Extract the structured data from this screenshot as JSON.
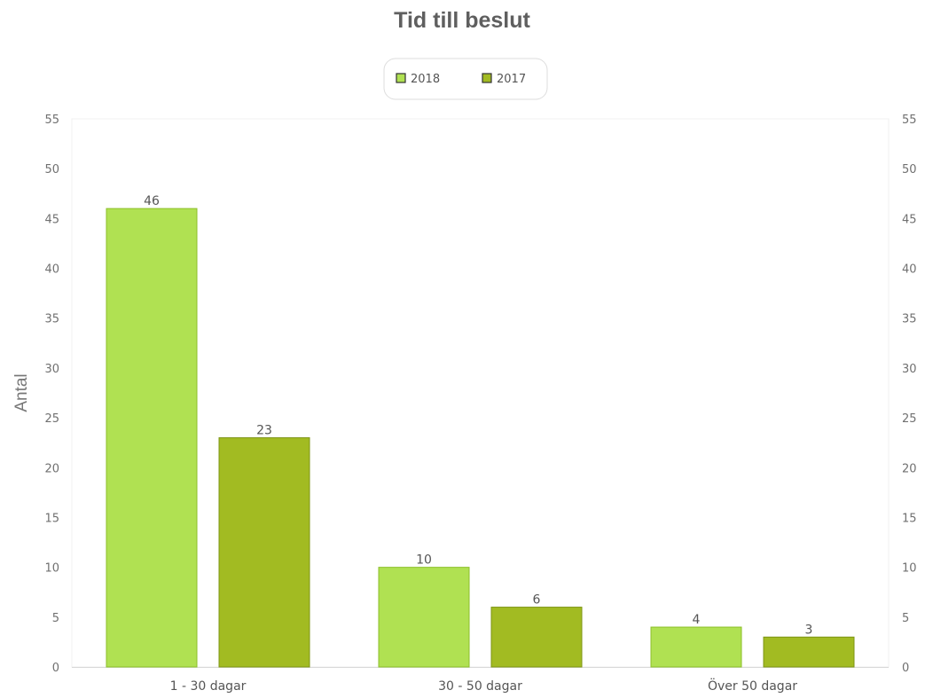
{
  "chart_data": {
    "type": "bar",
    "title": "Tid till beslut",
    "ylabel": "Antal",
    "xlabel": "",
    "categories": [
      "1 - 30 dagar",
      "30 - 50 dagar",
      "Över 50 dagar"
    ],
    "series": [
      {
        "name": "2018",
        "values": [
          46,
          10,
          4
        ],
        "color": "#b0e152",
        "stroke": "#8cbf2a"
      },
      {
        "name": "2017",
        "values": [
          23,
          6,
          3
        ],
        "color": "#a2bb22",
        "stroke": "#7d9414"
      }
    ],
    "ylim": [
      0,
      55
    ],
    "yticks": [
      0,
      5,
      10,
      15,
      20,
      25,
      30,
      35,
      40,
      45,
      50,
      55
    ],
    "secondary_y_axis": true,
    "data_labels": true,
    "grid": false,
    "legend_position": "top-center"
  }
}
